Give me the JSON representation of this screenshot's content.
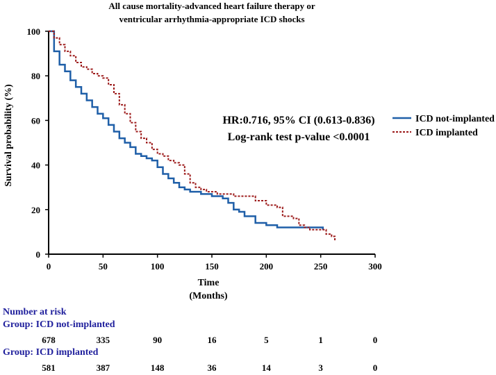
{
  "chart_data": {
    "type": "line",
    "title_line1": "All cause mortality-advanced heart failure therapy or",
    "title_line2": "ventricular arrhythmia-appropriate ICD shocks",
    "xlabel_line1": "Time",
    "xlabel_line2": "(Months)",
    "ylabel": "Survival probability (%)",
    "xlim": [
      0,
      300
    ],
    "ylim": [
      0,
      100
    ],
    "xticks": [
      "0",
      "50",
      "100",
      "150",
      "200",
      "250",
      "300"
    ],
    "yticks": [
      "0",
      "20",
      "40",
      "60",
      "80",
      "100"
    ],
    "annotation_line1": "HR:0.716, 95% CI (0.613-0.836)",
    "annotation_line2": "Log-rank test p-value <0.0001",
    "legend_position": "right",
    "series": [
      {
        "name": "ICD not-implanted",
        "color": "#1f5fa8",
        "dash": "solid",
        "x": [
          0,
          5,
          10,
          15,
          20,
          25,
          30,
          35,
          40,
          45,
          50,
          55,
          60,
          65,
          70,
          75,
          80,
          85,
          90,
          95,
          100,
          105,
          110,
          115,
          120,
          125,
          130,
          135,
          140,
          145,
          150,
          155,
          160,
          165,
          170,
          175,
          180,
          190,
          200,
          210,
          220,
          230,
          240,
          252
        ],
        "y": [
          100,
          91,
          85,
          82,
          78,
          75,
          72,
          69,
          66,
          63,
          61,
          58,
          55,
          52,
          50,
          48,
          45,
          44,
          43,
          42,
          39,
          36,
          34,
          32,
          30,
          29,
          28,
          28,
          27,
          27,
          26,
          26,
          25,
          23,
          20,
          19,
          17,
          14,
          13,
          12,
          12,
          12,
          12,
          11
        ]
      },
      {
        "name": "ICD implanted",
        "color": "#9c1a1a",
        "dash": "dashed",
        "x": [
          0,
          5,
          10,
          15,
          20,
          25,
          30,
          35,
          40,
          45,
          50,
          55,
          60,
          65,
          70,
          75,
          80,
          85,
          90,
          95,
          100,
          105,
          110,
          115,
          120,
          125,
          130,
          135,
          140,
          145,
          150,
          155,
          160,
          165,
          170,
          175,
          180,
          190,
          200,
          210,
          215,
          220,
          225,
          230,
          235,
          240,
          245,
          250,
          255,
          260,
          263
        ],
        "y": [
          100,
          97,
          94,
          91,
          89,
          86,
          84,
          83,
          81,
          80,
          79,
          76,
          72,
          67,
          63,
          59,
          55,
          52,
          50,
          47,
          45,
          44,
          42,
          41,
          40,
          36,
          32,
          30,
          29,
          28,
          28,
          27,
          27,
          27,
          26,
          26,
          26,
          24,
          22,
          21,
          17,
          17,
          16,
          13,
          12,
          11,
          11,
          11,
          9,
          8,
          6
        ]
      }
    ]
  },
  "risk_table": {
    "title": "Number at risk",
    "groups": [
      {
        "label": "Group: ICD not-implanted",
        "values": [
          "678",
          "335",
          "90",
          "16",
          "5",
          "1",
          "0"
        ]
      },
      {
        "label": "Group: ICD implanted",
        "values": [
          "581",
          "387",
          "148",
          "36",
          "14",
          "3",
          "0"
        ]
      }
    ]
  }
}
